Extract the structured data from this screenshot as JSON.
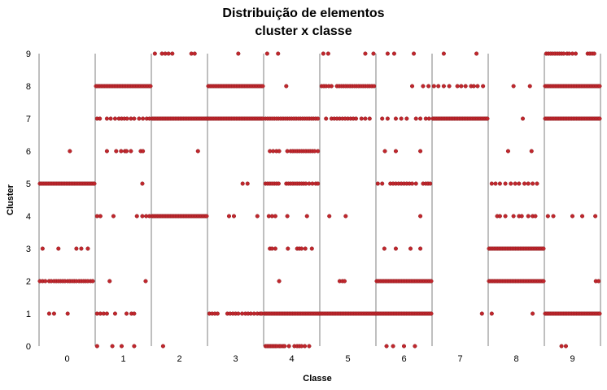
{
  "chart_data": {
    "type": "scatter",
    "title_line1": "Distribuição de elementos",
    "title_line2": "cluster x classe",
    "xlabel": "Classe",
    "ylabel": "Cluster",
    "x_categories": [
      "0",
      "1",
      "2",
      "3",
      "4",
      "5",
      "6",
      "7",
      "8",
      "9"
    ],
    "y_ticks": [
      "0",
      "1",
      "2",
      "3",
      "4",
      "5",
      "6",
      "7",
      "8",
      "9"
    ],
    "ylim": [
      0,
      9
    ],
    "grid": false,
    "legend": "none",
    "marker_color": "#C0272D",
    "marker_edge": "#8E1A1E",
    "divider_color": "#7F7F7F",
    "cells": [
      {
        "classe": 0,
        "cluster": 1,
        "offsets": [
          0.17,
          0.26,
          0.51
        ]
      },
      {
        "classe": 0,
        "cluster": 2,
        "offsets": [
          0.0,
          0.05,
          0.1,
          0.17,
          0.21,
          0.26,
          0.3,
          0.34,
          0.38,
          0.42,
          0.46,
          0.51,
          0.55,
          0.59,
          0.63,
          0.67,
          0.72,
          0.76,
          0.8,
          0.84,
          0.88,
          0.93,
          0.97
        ]
      },
      {
        "classe": 0,
        "cluster": 3,
        "offsets": [
          0.05,
          0.34,
          0.67,
          0.76,
          0.88
        ]
      },
      {
        "classe": 0,
        "cluster": 5,
        "density": "dense"
      },
      {
        "classe": 0,
        "cluster": 6,
        "offsets": [
          0.55
        ]
      },
      {
        "classe": 1,
        "cluster": 0,
        "offsets": [
          0.02,
          0.3,
          0.47,
          0.7
        ]
      },
      {
        "classe": 1,
        "cluster": 1,
        "offsets": [
          0.02,
          0.08,
          0.14,
          0.2,
          0.35,
          0.56,
          0.65,
          0.7
        ]
      },
      {
        "classe": 1,
        "cluster": 2,
        "offsets": [
          0.25,
          0.91
        ]
      },
      {
        "classe": 1,
        "cluster": 4,
        "offsets": [
          0.02,
          0.08,
          0.32,
          0.75,
          0.85,
          0.92,
          0.98
        ]
      },
      {
        "classe": 1,
        "cluster": 5,
        "offsets": [
          0.85
        ]
      },
      {
        "classe": 1,
        "cluster": 6,
        "offsets": [
          0.2,
          0.37,
          0.46,
          0.53,
          0.56,
          0.64,
          0.82,
          0.86
        ]
      },
      {
        "classe": 1,
        "cluster": 7,
        "offsets": [
          0.02,
          0.07,
          0.2,
          0.27,
          0.35,
          0.42,
          0.47,
          0.52,
          0.57,
          0.64,
          0.7,
          0.79,
          0.86,
          0.93,
          0.98
        ]
      },
      {
        "classe": 1,
        "cluster": 8,
        "density": "dense"
      },
      {
        "classe": 2,
        "cluster": 0,
        "offsets": [
          0.2
        ]
      },
      {
        "classe": 2,
        "cluster": 4,
        "density": "dense"
      },
      {
        "classe": 2,
        "cluster": 6,
        "offsets": [
          0.84
        ]
      },
      {
        "classe": 2,
        "cluster": 7,
        "density": "dense"
      },
      {
        "classe": 2,
        "cluster": 9,
        "offsets": [
          0.05,
          0.18,
          0.24,
          0.3,
          0.37,
          0.72,
          0.78
        ]
      },
      {
        "classe": 3,
        "cluster": 1,
        "offsets": [
          0.02,
          0.07,
          0.12,
          0.17,
          0.35,
          0.4,
          0.45,
          0.5,
          0.55,
          0.62,
          0.68,
          0.73,
          0.78,
          0.84,
          0.9,
          0.95,
          0.98
        ]
      },
      {
        "classe": 3,
        "cluster": 4,
        "offsets": [
          0.38,
          0.47,
          0.9
        ]
      },
      {
        "classe": 3,
        "cluster": 5,
        "offsets": [
          0.63,
          0.72
        ]
      },
      {
        "classe": 3,
        "cluster": 7,
        "density": "dense"
      },
      {
        "classe": 3,
        "cluster": 8,
        "density": "dense"
      },
      {
        "classe": 3,
        "cluster": 9,
        "offsets": [
          0.55
        ]
      },
      {
        "classe": 4,
        "cluster": 0,
        "offsets": [
          0.02,
          0.05,
          0.08,
          0.11,
          0.14,
          0.17,
          0.2,
          0.23,
          0.27,
          0.3,
          0.34,
          0.37,
          0.45,
          0.55,
          0.6,
          0.64,
          0.68,
          0.74,
          0.82
        ]
      },
      {
        "classe": 4,
        "cluster": 1,
        "density": "dense"
      },
      {
        "classe": 4,
        "cluster": 2,
        "offsets": [
          0.27
        ]
      },
      {
        "classe": 4,
        "cluster": 3,
        "offsets": [
          0.1,
          0.14,
          0.2,
          0.43,
          0.6,
          0.64,
          0.68,
          0.75,
          0.87
        ]
      },
      {
        "classe": 4,
        "cluster": 4,
        "offsets": [
          0.08,
          0.14,
          0.2,
          0.42,
          0.78
        ]
      },
      {
        "classe": 4,
        "cluster": 5,
        "offsets": [
          0.02,
          0.06,
          0.1,
          0.14,
          0.18,
          0.22,
          0.26,
          0.4,
          0.44,
          0.48,
          0.52,
          0.56,
          0.6,
          0.64,
          0.68,
          0.72,
          0.76,
          0.82,
          0.88,
          0.94,
          0.98
        ]
      },
      {
        "classe": 4,
        "cluster": 6,
        "offsets": [
          0.1,
          0.16,
          0.22,
          0.27,
          0.42,
          0.48,
          0.52,
          0.56,
          0.6,
          0.64,
          0.68,
          0.72,
          0.76,
          0.8,
          0.84,
          0.88,
          0.92,
          0.98
        ]
      },
      {
        "classe": 4,
        "cluster": 7,
        "offsets": [
          0.02,
          0.06,
          0.1,
          0.14,
          0.18,
          0.22,
          0.26,
          0.3,
          0.34,
          0.38,
          0.42,
          0.46,
          0.5,
          0.54,
          0.58,
          0.62,
          0.66,
          0.7,
          0.74,
          0.78,
          0.82,
          0.86,
          0.9,
          0.94,
          0.98
        ]
      },
      {
        "classe": 4,
        "cluster": 8,
        "offsets": [
          0.4
        ]
      },
      {
        "classe": 4,
        "cluster": 9,
        "offsets": [
          0.05,
          0.25
        ]
      },
      {
        "classe": 5,
        "cluster": 1,
        "density": "dense"
      },
      {
        "classe": 5,
        "cluster": 2,
        "offsets": [
          0.35,
          0.4,
          0.44
        ]
      },
      {
        "classe": 5,
        "cluster": 4,
        "offsets": [
          0.16,
          0.46
        ]
      },
      {
        "classe": 5,
        "cluster": 7,
        "offsets": [
          0.1,
          0.2,
          0.25,
          0.3,
          0.35,
          0.4,
          0.45,
          0.5,
          0.55,
          0.6,
          0.65,
          0.75,
          0.82,
          0.9
        ]
      },
      {
        "classe": 5,
        "cluster": 8,
        "offsets": [
          0.02,
          0.06,
          0.1,
          0.15,
          0.2,
          0.3,
          0.34,
          0.38,
          0.42,
          0.46,
          0.5,
          0.54,
          0.58,
          0.62,
          0.66,
          0.7,
          0.74,
          0.78,
          0.82,
          0.86,
          0.9,
          0.94,
          0.98
        ]
      },
      {
        "classe": 5,
        "cluster": 9,
        "offsets": [
          0.05,
          0.14,
          0.82,
          0.97
        ]
      },
      {
        "classe": 6,
        "cluster": 0,
        "offsets": [
          0.18,
          0.3,
          0.5,
          0.7
        ]
      },
      {
        "classe": 6,
        "cluster": 1,
        "density": "dense"
      },
      {
        "classe": 6,
        "cluster": 2,
        "density": "dense"
      },
      {
        "classe": 6,
        "cluster": 3,
        "offsets": [
          0.14,
          0.35,
          0.62,
          0.8
        ]
      },
      {
        "classe": 6,
        "cluster": 4,
        "offsets": [
          0.8
        ]
      },
      {
        "classe": 6,
        "cluster": 5,
        "offsets": [
          0.02,
          0.1,
          0.25,
          0.3,
          0.35,
          0.4,
          0.45,
          0.5,
          0.55,
          0.6,
          0.65,
          0.72,
          0.85,
          0.9,
          0.94,
          0.98
        ]
      },
      {
        "classe": 6,
        "cluster": 6,
        "offsets": [
          0.15,
          0.35,
          0.8
        ]
      },
      {
        "classe": 6,
        "cluster": 7,
        "offsets": [
          0.1,
          0.2,
          0.35,
          0.45,
          0.55,
          0.72,
          0.8,
          0.9,
          0.96
        ]
      },
      {
        "classe": 6,
        "cluster": 8,
        "offsets": [
          0.65,
          0.85,
          0.95
        ]
      },
      {
        "classe": 6,
        "cluster": 9,
        "offsets": [
          0.2,
          0.32,
          0.68
        ]
      },
      {
        "classe": 7,
        "cluster": 1,
        "offsets": [
          0.9
        ]
      },
      {
        "classe": 7,
        "cluster": 7,
        "density": "dense"
      },
      {
        "classe": 7,
        "cluster": 8,
        "offsets": [
          0.02,
          0.1,
          0.2,
          0.3,
          0.45,
          0.52,
          0.6,
          0.7,
          0.75,
          0.82,
          0.92
        ]
      },
      {
        "classe": 7,
        "cluster": 9,
        "offsets": [
          0.2,
          0.8
        ]
      },
      {
        "classe": 8,
        "cluster": 1,
        "offsets": [
          0.05,
          0.8
        ]
      },
      {
        "classe": 8,
        "cluster": 2,
        "density": "dense"
      },
      {
        "classe": 8,
        "cluster": 3,
        "density": "dense"
      },
      {
        "classe": 8,
        "cluster": 4,
        "offsets": [
          0.15,
          0.2,
          0.3,
          0.45,
          0.55,
          0.6,
          0.72,
          0.8,
          0.85
        ]
      },
      {
        "classe": 8,
        "cluster": 5,
        "offsets": [
          0.05,
          0.12,
          0.2,
          0.3,
          0.4,
          0.48,
          0.55,
          0.65,
          0.72,
          0.8,
          0.88
        ]
      },
      {
        "classe": 8,
        "cluster": 6,
        "offsets": [
          0.35,
          0.78
        ]
      },
      {
        "classe": 8,
        "cluster": 7,
        "offsets": [
          0.62
        ]
      },
      {
        "classe": 8,
        "cluster": 8,
        "offsets": [
          0.45,
          0.75
        ]
      },
      {
        "classe": 9,
        "cluster": 0,
        "offsets": [
          0.3,
          0.38
        ]
      },
      {
        "classe": 9,
        "cluster": 1,
        "density": "dense"
      },
      {
        "classe": 9,
        "cluster": 2,
        "offsets": [
          0.93,
          0.98
        ]
      },
      {
        "classe": 9,
        "cluster": 4,
        "offsets": [
          0.05,
          0.15,
          0.5,
          0.68,
          0.92
        ]
      },
      {
        "classe": 9,
        "cluster": 7,
        "density": "dense"
      },
      {
        "classe": 9,
        "cluster": 8,
        "density": "dense"
      },
      {
        "classe": 9,
        "cluster": 9,
        "offsets": [
          0.02,
          0.06,
          0.1,
          0.14,
          0.18,
          0.22,
          0.26,
          0.3,
          0.34,
          0.4,
          0.44,
          0.5,
          0.56,
          0.78,
          0.82,
          0.86,
          0.9
        ]
      }
    ]
  }
}
